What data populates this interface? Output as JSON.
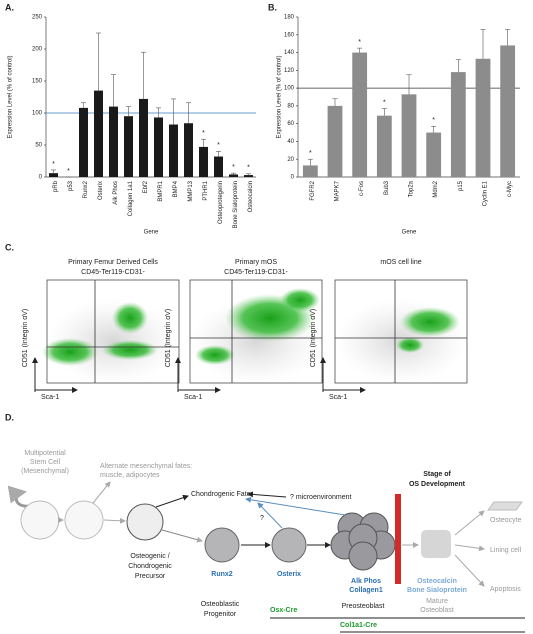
{
  "chart_data": [
    {
      "type": "bar",
      "panel": "A.",
      "y_label": "Expression Level (% of control)",
      "x_label": "Gene",
      "categories": [
        "pRb",
        "p53",
        "Runx2",
        "Osterix",
        "Alk Phos",
        "Collagen 1a1",
        "Ebf2",
        "BMPR1",
        "BMP4",
        "MMP13",
        "PTHR1",
        "Osteoprotegerin",
        "Bone Sialoprotein",
        "Osteocalcin"
      ],
      "values": [
        6,
        0,
        108,
        135,
        110,
        95,
        122,
        93,
        82,
        84,
        47,
        32,
        4,
        3
      ],
      "errors": [
        5,
        0,
        8,
        90,
        50,
        15,
        73,
        15,
        40,
        32,
        12,
        8,
        2,
        2
      ],
      "markers": [
        "*",
        "*",
        null,
        null,
        null,
        null,
        null,
        null,
        null,
        null,
        "*",
        "*",
        "*",
        "*"
      ],
      "color": "#1a1a1a",
      "reference_line": {
        "value": 100,
        "color": "#3a7ebf"
      },
      "ylim": [
        0,
        250
      ],
      "yticks": [
        0,
        50,
        100,
        150,
        200,
        250
      ]
    },
    {
      "type": "bar",
      "panel": "B.",
      "y_label": "Expression Level (% of control)",
      "x_label": "Gene",
      "categories": [
        "FGFR2",
        "MAPK7",
        "c-Fos",
        "Bub3",
        "Top2a",
        "Mdm2",
        "p15",
        "Cyclin E1",
        "c-Myc"
      ],
      "values": [
        13,
        80,
        140,
        69,
        93,
        50,
        118,
        133,
        148
      ],
      "errors": [
        7,
        8,
        5,
        8,
        22,
        7,
        14,
        33,
        18
      ],
      "markers": [
        "*",
        null,
        "*",
        "*",
        null,
        "*",
        null,
        null,
        null
      ],
      "color": "#8c8c8c",
      "reference_line": {
        "value": 100,
        "color": "#333333"
      },
      "ylim": [
        0,
        180
      ],
      "yticks": [
        0,
        20,
        40,
        60,
        80,
        100,
        120,
        140,
        160,
        180
      ]
    }
  ],
  "flow_panel": {
    "label": "C.",
    "plots": [
      {
        "title": [
          "Primary Femur Derived Cells",
          "CD45-Ter119-CD31-"
        ],
        "y_label": "CD51 (Integrin αV)",
        "x_label": "Sca-1"
      },
      {
        "title": [
          "Primary mOS",
          "CD45-Ter119-CD31-"
        ],
        "y_label": "CD51 (Integrin αV)",
        "x_label": "Sca-1"
      },
      {
        "title": [
          "mOS cell line"
        ],
        "y_label": "CD51 (Integrin αV)",
        "x_label": "Sca-1"
      }
    ]
  },
  "diagram": {
    "label": "D.",
    "stem_cell": [
      "Multipotential",
      "Stem Cell",
      "(Mesenchymal)"
    ],
    "alternate_fates": [
      "Alternate mesenchymal fates:",
      "muscle, adipocytes"
    ],
    "chondrogenic_fate": "Chondrogenic Fate",
    "microenvironment": "? microenvironment",
    "question": "?",
    "stage": [
      "Stage of",
      "OS Development"
    ],
    "precursor": [
      "Osteogenic /",
      "Chondrogenic",
      "Precursor"
    ],
    "markers": {
      "runx2": "Runx2",
      "osterix": "Osterix",
      "preosteoblast": [
        "Alk Phos",
        "Collagen1"
      ],
      "mature": [
        "Osteocalcin",
        "Bone Sialoprotein"
      ]
    },
    "stages": {
      "progenitor": [
        "Osteoblastic",
        "Progenitor"
      ],
      "preosteoblast": "Preosteoblast",
      "mature": [
        "Mature",
        "Osteoblast"
      ]
    },
    "fates": [
      "Osteocyte",
      "Lining cell",
      "Apoptosis"
    ],
    "cre_lines": [
      "Osx-Cre",
      "Col1a1-Cre"
    ]
  }
}
